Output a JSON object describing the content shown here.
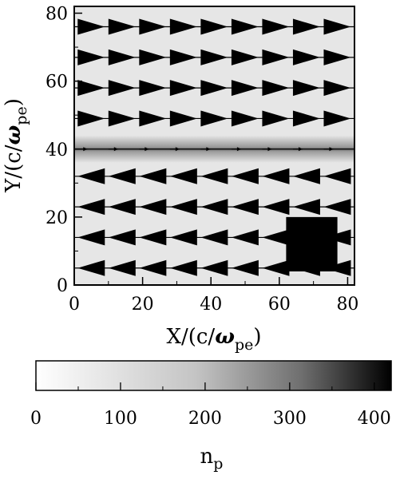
{
  "chart_data": [
    {
      "type": "heatmap",
      "xlabel": {
        "main": "X/(c/",
        "greek": "ω",
        "sub": "pe",
        "close": ")"
      },
      "ylabel": {
        "main": "Y/(c/",
        "greek": "ω",
        "sub": "pe",
        "close": ")"
      },
      "xlim": [
        0,
        82
      ],
      "ylim": [
        0,
        82
      ],
      "xticks": [
        0,
        20,
        40,
        60,
        80
      ],
      "yticks": [
        0,
        20,
        40,
        60,
        80
      ],
      "xtick_labels": [
        "0",
        "20",
        "40",
        "60",
        "80"
      ],
      "ytick_labels": [
        "0",
        "20",
        "40",
        "60",
        "80"
      ],
      "background_density": 25,
      "shear_layer": {
        "y": 40,
        "peak_density": 180,
        "halfwidth": 1.6
      },
      "dense_block": {
        "x": [
          62,
          77
        ],
        "y": [
          4,
          20
        ],
        "density": 415
      },
      "vector_field": {
        "rows_y": [
          5,
          14,
          23,
          32,
          40,
          49,
          58,
          67,
          76
        ],
        "arrows_x": [
          1,
          10,
          19,
          28,
          37,
          46,
          55,
          64,
          73
        ],
        "row_speed": [
          -1,
          -1,
          -1,
          -1,
          0.15,
          1,
          1,
          1,
          1
        ]
      },
      "grid": false
    },
    {
      "type": "colorbar",
      "label": {
        "main": "n",
        "sub": "p"
      },
      "range": [
        0,
        420
      ],
      "ticks": [
        0,
        100,
        200,
        300,
        400
      ],
      "tick_labels": [
        "0",
        "100",
        "200",
        "300",
        "400"
      ],
      "colormap": [
        "#ffffff",
        "#000000"
      ]
    }
  ]
}
